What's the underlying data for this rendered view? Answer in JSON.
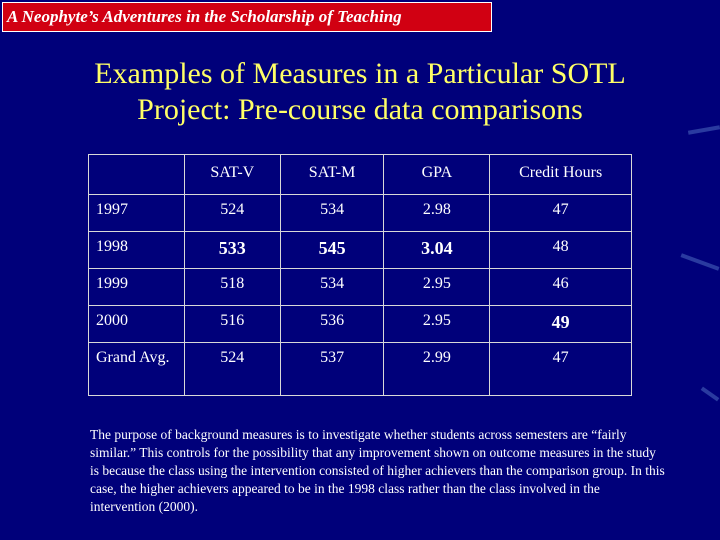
{
  "header": {
    "banner_text": "A Neophyte’s Adventures in the Scholarship of Teaching"
  },
  "title": {
    "line1": "Examples of Measures in a Particular SOTL",
    "line2": "Project: Pre-course data comparisons"
  },
  "table": {
    "columns": [
      "",
      "SAT-V",
      "SAT-M",
      "GPA",
      "Credit Hours"
    ],
    "rows": [
      {
        "label": "1997",
        "values": [
          "524",
          "534",
          "2.98",
          "47"
        ],
        "bold": [
          false,
          false,
          false,
          false
        ]
      },
      {
        "label": "1998",
        "values": [
          "533",
          "545",
          "3.04",
          "48"
        ],
        "bold": [
          true,
          true,
          true,
          false
        ]
      },
      {
        "label": "1999",
        "values": [
          "518",
          "534",
          "2.95",
          "46"
        ],
        "bold": [
          false,
          false,
          false,
          false
        ]
      },
      {
        "label": "2000",
        "values": [
          "516",
          "536",
          "2.95",
          "49"
        ],
        "bold": [
          false,
          false,
          false,
          true
        ]
      },
      {
        "label": "Grand Avg.",
        "values": [
          "524",
          "537",
          "2.99",
          "47"
        ],
        "bold": [
          false,
          false,
          false,
          false
        ]
      }
    ]
  },
  "footnote": "The purpose of background measures is to investigate whether students across semesters are “fairly similar.” This controls for the possibility that any improvement shown on  outcome measures in the study is because the  class using the intervention consisted of higher achievers than the comparison group.   In this case, the higher achievers appeared to be in the 1998 class rather than the class involved in the intervention (2000).",
  "colors": {
    "background": "#00007a",
    "banner": "#d10012",
    "title": "#ffff66",
    "text": "#ffffff"
  }
}
